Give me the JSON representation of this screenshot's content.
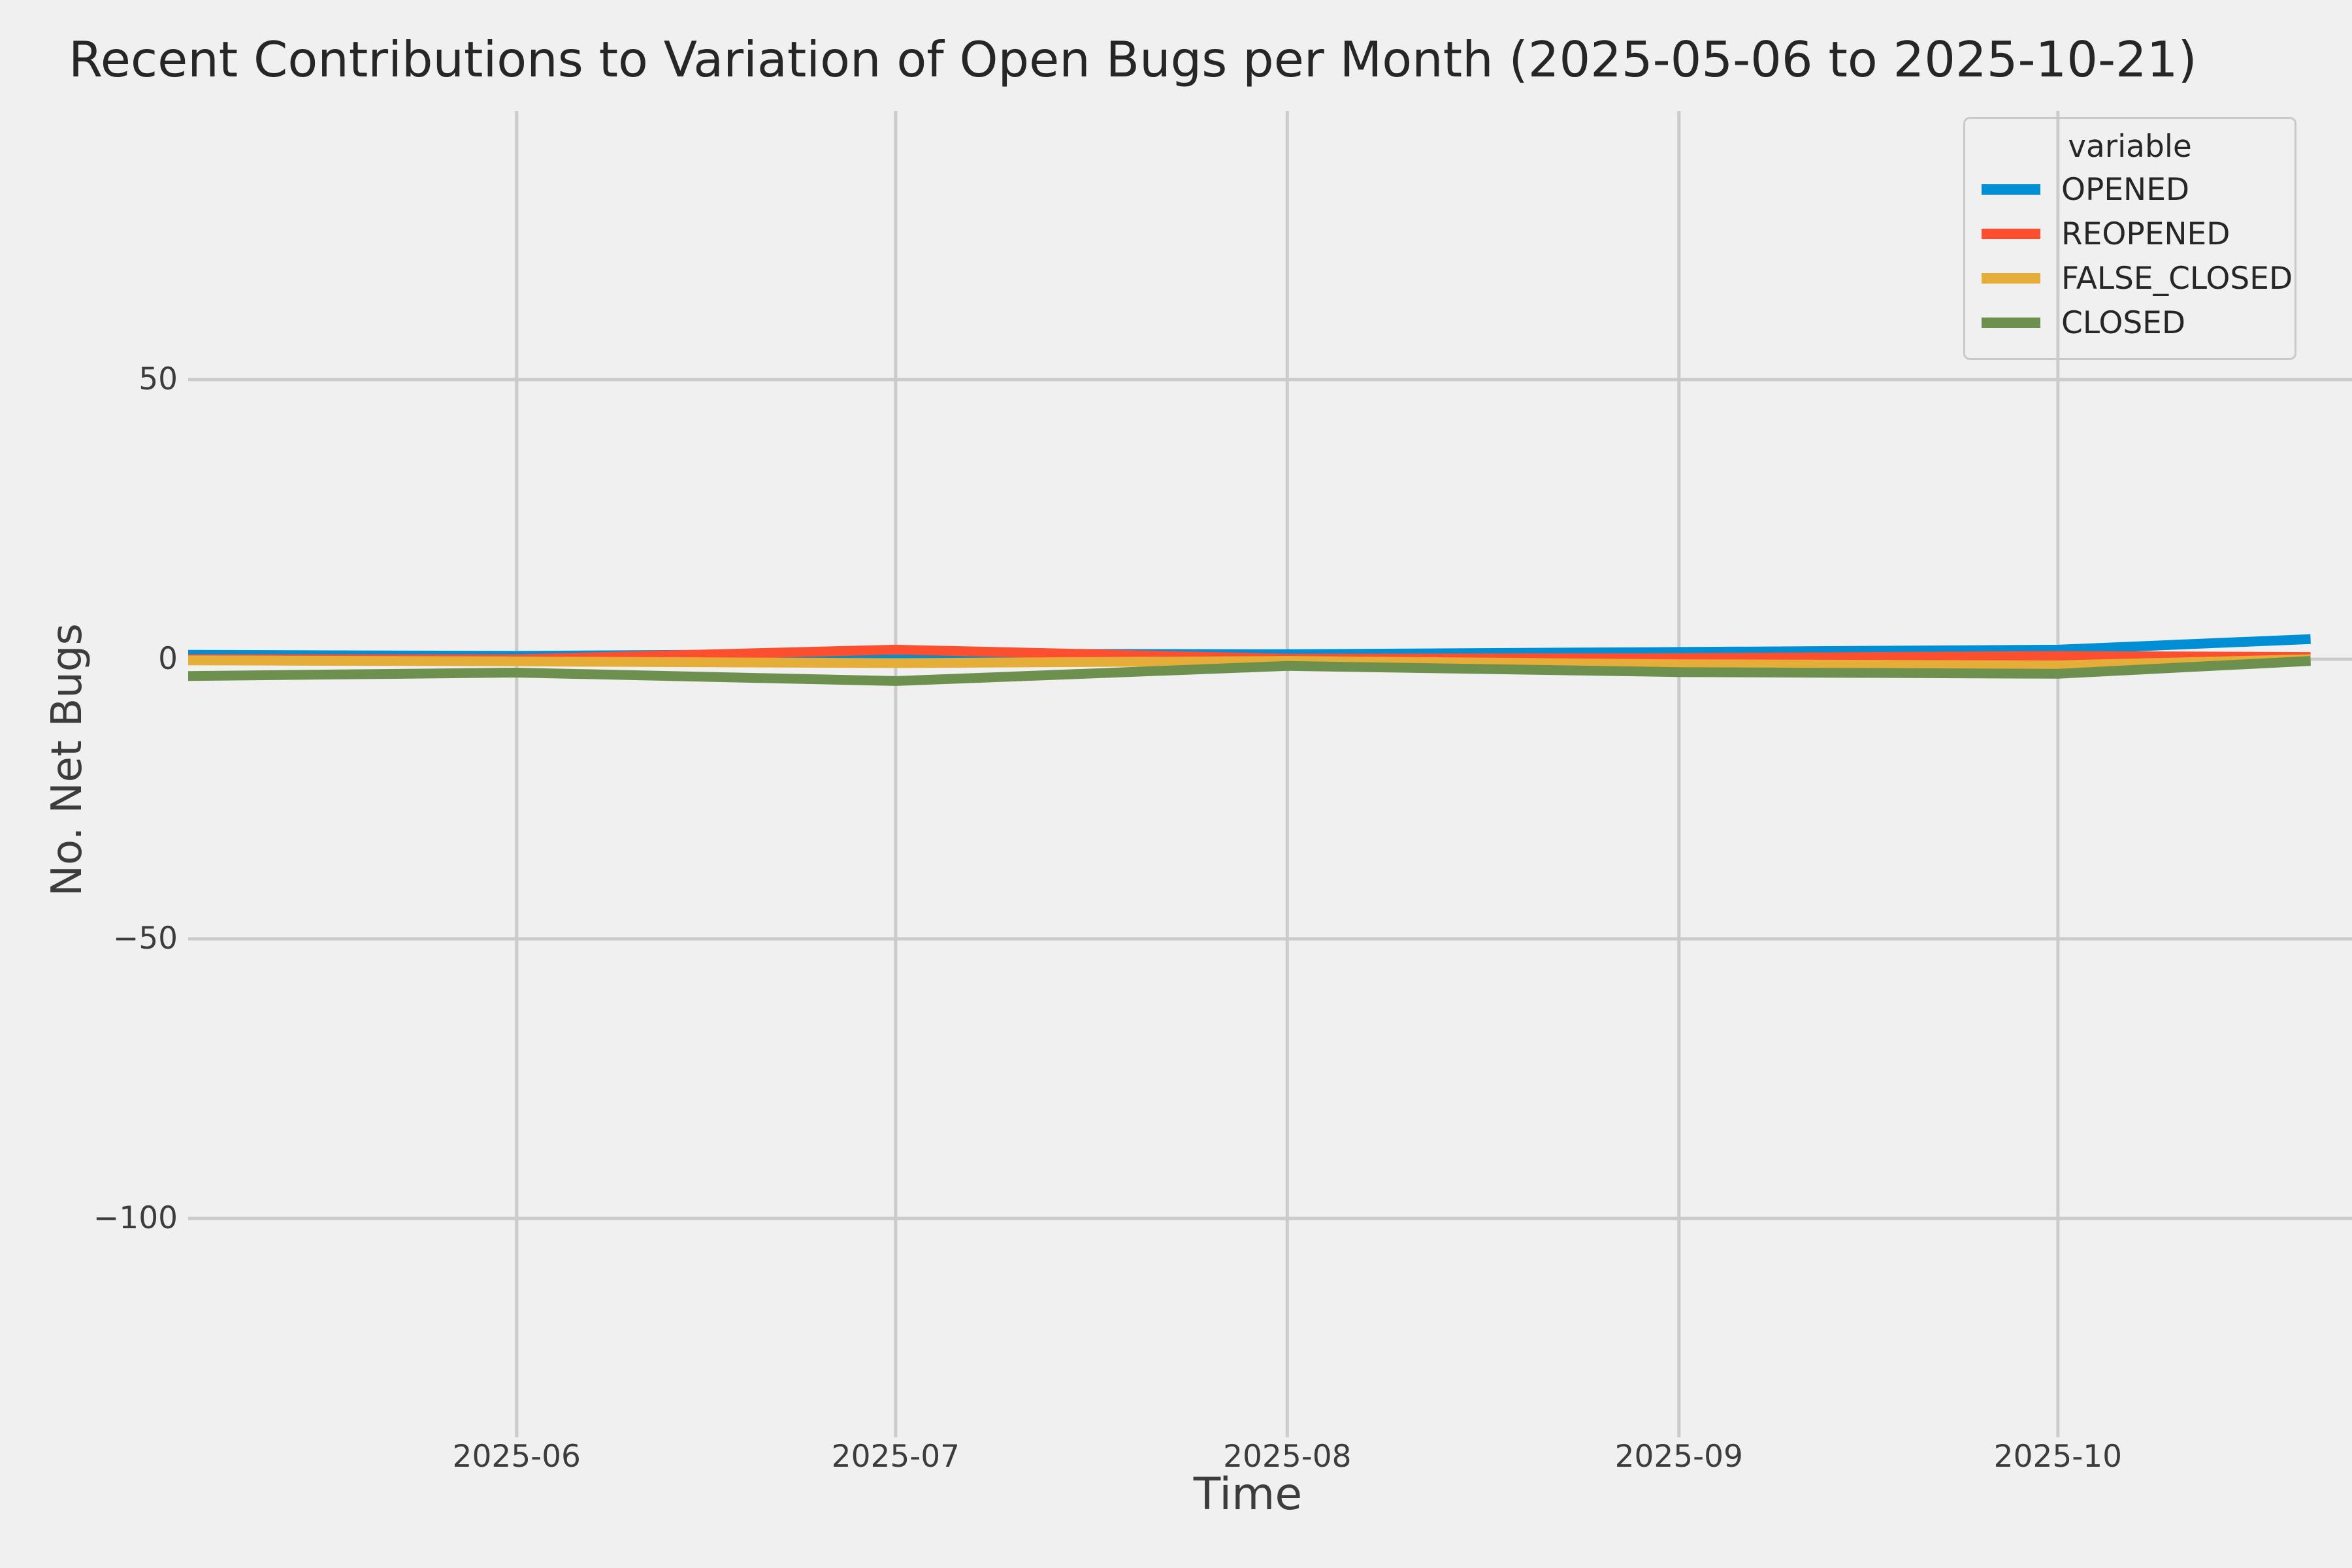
{
  "title": "Recent Contributions to Variation of Open Bugs per Month (2025-05-06 to 2025-10-21)",
  "chart_data": {
    "type": "line",
    "x": [
      "2025-05-06",
      "2025-06-01",
      "2025-07-01",
      "2025-08-01",
      "2025-09-01",
      "2025-10-01",
      "2025-10-21"
    ],
    "series": [
      {
        "name": "OPENED",
        "color": "#008fd5",
        "values": [
          0.8,
          0.6,
          1.0,
          0.9,
          1.3,
          1.7,
          3.6
        ]
      },
      {
        "name": "REOPENED",
        "color": "#fc4f30",
        "values": [
          0.0,
          0.0,
          1.7,
          0.1,
          0.2,
          0.6,
          0.4
        ]
      },
      {
        "name": "FALSE_CLOSED",
        "color": "#e5ae38",
        "values": [
          -0.2,
          -0.4,
          -0.7,
          -0.3,
          -0.9,
          -1.1,
          0.0
        ]
      },
      {
        "name": "CLOSED",
        "color": "#6d904f",
        "values": [
          -3.0,
          -2.4,
          -3.9,
          -1.2,
          -2.3,
          -2.6,
          -0.3
        ]
      }
    ],
    "xlabel": "Time",
    "ylabel": "No. Net Bugs",
    "x_tick_dates": [
      "2025-06-01",
      "2025-07-01",
      "2025-08-01",
      "2025-09-01",
      "2025-10-01"
    ],
    "x_tick_labels": [
      "2025-06",
      "2025-07",
      "2025-08",
      "2025-09",
      "2025-10"
    ],
    "y_tick_values": [
      50,
      0,
      -50,
      -100
    ],
    "y_tick_labels": [
      "50",
      "0",
      "−50",
      "−100"
    ],
    "ylim": [
      -139,
      98
    ],
    "grid": true,
    "legend_title": "variable",
    "legend_position": "upper right",
    "colors": {
      "background": "#f0f0f0",
      "gridline": "#cbcbcb",
      "text": "#3c3c3c",
      "title_text": "#262626"
    }
  }
}
